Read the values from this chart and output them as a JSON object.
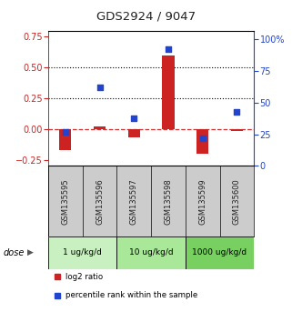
{
  "title": "GDS2924 / 9047",
  "samples": [
    "GSM135595",
    "GSM135596",
    "GSM135597",
    "GSM135598",
    "GSM135599",
    "GSM135600"
  ],
  "log2_ratio": [
    -0.17,
    0.02,
    -0.07,
    0.6,
    -0.2,
    -0.02
  ],
  "percentile_rank": [
    27,
    62,
    38,
    92,
    22,
    43
  ],
  "ylim_left": [
    -0.3,
    0.8
  ],
  "ylim_right": [
    0,
    107
  ],
  "yticks_left": [
    -0.25,
    0.0,
    0.25,
    0.5,
    0.75
  ],
  "yticks_right": [
    0,
    25,
    50,
    75,
    100
  ],
  "hlines_dotted": [
    0.25,
    0.5
  ],
  "hline_dashed": 0.0,
  "dose_groups": [
    {
      "label": "1 ug/kg/d",
      "samples": [
        "GSM135595",
        "GSM135596"
      ],
      "color": "#c8f0c0"
    },
    {
      "label": "10 ug/kg/d",
      "samples": [
        "GSM135597",
        "GSM135598"
      ],
      "color": "#a8e898"
    },
    {
      "label": "1000 ug/kg/d",
      "samples": [
        "GSM135599",
        "GSM135600"
      ],
      "color": "#78d060"
    }
  ],
  "bar_color": "#cc2222",
  "square_color": "#2244cc",
  "bar_width": 0.35,
  "legend_items": [
    {
      "label": "log2 ratio",
      "color": "#cc2222"
    },
    {
      "label": "percentile rank within the sample",
      "color": "#2244cc"
    }
  ],
  "dose_label": "dose",
  "bg_color": "#ffffff",
  "plot_bg": "#ffffff",
  "gsm_bg_color": "#cccccc",
  "gsm_label_color": "#222222",
  "title_color": "#222222"
}
